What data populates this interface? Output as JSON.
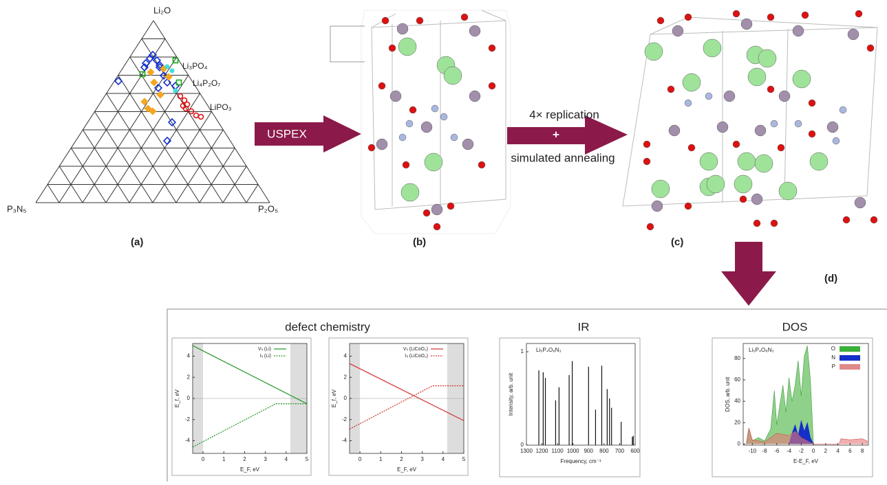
{
  "ternary": {
    "top": "Li₂O",
    "left": "P₃N₅",
    "right": "P₂O₅",
    "labels": [
      "Li₃PO₄",
      "Li₄P₂O₇",
      "LiPO₃"
    ],
    "caption": "(a)"
  },
  "arrows": {
    "uspex": "USPEX",
    "replication": "4× replication",
    "plus": "+",
    "annealing": "simulated annealing"
  },
  "captions": {
    "b": "(b)",
    "c": "(c)",
    "d": "(d)"
  },
  "panel": {
    "titles": {
      "defect": "defect chemistry",
      "ir": "IR",
      "dos": "DOS"
    },
    "defect_li": {
      "legend": [
        "Vₗᵢ (Li)",
        "Iₗᵢ (Li)"
      ],
      "ylabel": "E_f, eV",
      "xlabel": "E_F, eV",
      "xticks": [
        0,
        1,
        2,
        3,
        4,
        5
      ],
      "yticks": [
        4,
        2,
        0,
        -2,
        -4
      ]
    },
    "defect_lco": {
      "legend": [
        "Vₗᵢ (LiCoO₂)",
        "Iₗᵢ (LiCoO₂)"
      ],
      "ylabel": "E_f, eV",
      "xlabel": "E_F, eV",
      "xticks": [
        0,
        1,
        2,
        3,
        4,
        5
      ],
      "yticks": [
        4,
        2,
        0,
        -2,
        -4
      ]
    },
    "ir": {
      "formula": "Li₅P₄O₈N₃",
      "ylabel": "Intensity, arb. unit",
      "xlabel": "Frequency, cm⁻¹",
      "xticks": [
        1300,
        1200,
        1100,
        1000,
        900,
        800,
        700,
        600
      ],
      "yticks": [
        0,
        1
      ],
      "peak_freq": [
        1220,
        1192,
        1178,
        1112,
        1090,
        1025,
        1005,
        900,
        855,
        815,
        780,
        765,
        752,
        690,
        618,
        612
      ],
      "peak_intensity": [
        0.8,
        0.78,
        0.72,
        0.48,
        0.62,
        0.75,
        0.9,
        0.84,
        0.38,
        0.85,
        0.6,
        0.5,
        0.4,
        0.25,
        0.09,
        0.1
      ]
    },
    "dos": {
      "formula": "Li₅P₄O₈N₃",
      "legend": [
        "O",
        "N",
        "P"
      ],
      "ylabel": "DOS, arb. unit",
      "xlabel": "E-E_F, eV",
      "xticks": [
        -10,
        -8,
        -6,
        -4,
        -2,
        0,
        2,
        4,
        6,
        8
      ],
      "yticks": [
        0,
        20,
        40,
        60,
        80
      ]
    }
  }
}
